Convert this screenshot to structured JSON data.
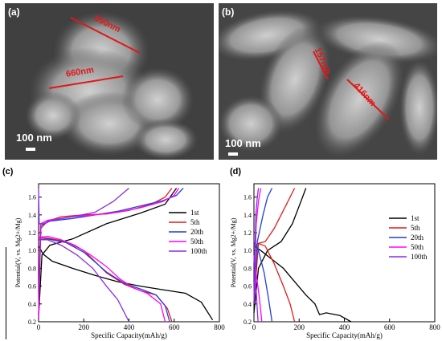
{
  "sem_images": [
    {
      "label": "(a)",
      "scale_label": "100 nm",
      "measurements": [
        "650nm",
        "660nm"
      ]
    },
    {
      "label": "(b)",
      "scale_label": "100 nm",
      "measurements": [
        "157nm",
        "416nm"
      ]
    }
  ],
  "chart_data": [
    {
      "label": "(c)",
      "type": "line",
      "xlabel": "Specific Capacity(mAh/g)",
      "ylabel": "Potential(V, vs. Mg2+/Mg)",
      "xlim": [
        0,
        800
      ],
      "ylim": [
        0.2,
        1.75
      ],
      "xticks": [
        "0",
        "200",
        "400",
        "600",
        "800"
      ],
      "yticks": [
        "0.2",
        "0.4",
        "0.6",
        "0.8",
        "1.0",
        "1.2",
        "1.4",
        "1.6"
      ],
      "legend_position": "right",
      "series": [
        {
          "name": "1st",
          "color": "#000000",
          "discharge": [
            [
              0,
              1.05
            ],
            [
              20,
              0.96
            ],
            [
              60,
              0.88
            ],
            [
              150,
              0.8
            ],
            [
              250,
              0.72
            ],
            [
              350,
              0.65
            ],
            [
              450,
              0.6
            ],
            [
              550,
              0.56
            ],
            [
              650,
              0.52
            ],
            [
              720,
              0.42
            ],
            [
              770,
              0.22
            ]
          ],
          "charge": [
            [
              0,
              0.25
            ],
            [
              15,
              0.95
            ],
            [
              50,
              1.06
            ],
            [
              150,
              1.13
            ],
            [
              300,
              1.3
            ],
            [
              450,
              1.42
            ],
            [
              560,
              1.52
            ],
            [
              610,
              1.7
            ]
          ]
        },
        {
          "name": "5th",
          "color": "#e41a1c",
          "discharge": [
            [
              0,
              1.14
            ],
            [
              40,
              1.14
            ],
            [
              120,
              1.1
            ],
            [
              200,
              1.0
            ],
            [
              300,
              0.75
            ],
            [
              380,
              0.62
            ],
            [
              450,
              0.55
            ],
            [
              520,
              0.5
            ],
            [
              570,
              0.35
            ],
            [
              590,
              0.2
            ]
          ],
          "charge": [
            [
              0,
              0.28
            ],
            [
              10,
              1.25
            ],
            [
              40,
              1.33
            ],
            [
              100,
              1.38
            ],
            [
              200,
              1.4
            ],
            [
              300,
              1.41
            ],
            [
              400,
              1.45
            ],
            [
              500,
              1.52
            ],
            [
              560,
              1.6
            ],
            [
              590,
              1.7
            ]
          ]
        },
        {
          "name": "20th",
          "color": "#1f3fd8",
          "discharge": [
            [
              0,
              1.12
            ],
            [
              40,
              1.13
            ],
            [
              120,
              1.09
            ],
            [
              200,
              0.98
            ],
            [
              300,
              0.76
            ],
            [
              380,
              0.63
            ],
            [
              460,
              0.56
            ],
            [
              520,
              0.5
            ],
            [
              560,
              0.38
            ],
            [
              580,
              0.2
            ]
          ],
          "charge": [
            [
              0,
              0.28
            ],
            [
              10,
              1.28
            ],
            [
              50,
              1.33
            ],
            [
              150,
              1.36
            ],
            [
              250,
              1.4
            ],
            [
              350,
              1.44
            ],
            [
              450,
              1.5
            ],
            [
              550,
              1.56
            ],
            [
              610,
              1.62
            ],
            [
              640,
              1.7
            ]
          ]
        },
        {
          "name": "50th",
          "color": "#ff00ff",
          "discharge": [
            [
              0,
              1.15
            ],
            [
              40,
              1.16
            ],
            [
              100,
              1.12
            ],
            [
              160,
              1.06
            ],
            [
              230,
              0.95
            ],
            [
              300,
              0.82
            ],
            [
              360,
              0.68
            ],
            [
              420,
              0.58
            ],
            [
              480,
              0.52
            ],
            [
              540,
              0.4
            ],
            [
              560,
              0.2
            ]
          ],
          "charge": [
            [
              0,
              0.25
            ],
            [
              8,
              1.3
            ],
            [
              40,
              1.34
            ],
            [
              150,
              1.38
            ],
            [
              250,
              1.4
            ],
            [
              350,
              1.43
            ],
            [
              450,
              1.48
            ],
            [
              550,
              1.55
            ],
            [
              600,
              1.62
            ],
            [
              620,
              1.7
            ]
          ]
        },
        {
          "name": "100th",
          "color": "#8a2be2",
          "discharge": [
            [
              0,
              1.12
            ],
            [
              40,
              1.12
            ],
            [
              100,
              1.06
            ],
            [
              170,
              0.95
            ],
            [
              240,
              0.8
            ],
            [
              300,
              0.6
            ],
            [
              350,
              0.45
            ],
            [
              400,
              0.2
            ]
          ],
          "charge": [
            [
              0,
              1.7
            ],
            [
              3,
              1.3
            ],
            [
              20,
              1.3
            ],
            [
              60,
              1.34
            ],
            [
              150,
              1.38
            ],
            [
              250,
              1.43
            ],
            [
              330,
              1.55
            ],
            [
              400,
              1.7
            ]
          ]
        }
      ]
    },
    {
      "label": "(d)",
      "type": "line",
      "xlabel": "Specific Capacity(mAh/g)",
      "ylabel": "Potential(V, vs. Mg2+/Mg)",
      "xlim": [
        0,
        800
      ],
      "ylim": [
        0.2,
        1.75
      ],
      "xticks": [
        "0",
        "200",
        "400",
        "600",
        "800"
      ],
      "yticks": [
        "0.2",
        "0.4",
        "0.6",
        "0.8",
        "1.0",
        "1.2",
        "1.4",
        "1.6"
      ],
      "legend_position": "right",
      "series": [
        {
          "name": "1st",
          "color": "#000000",
          "discharge": [
            [
              0,
              1.05
            ],
            [
              30,
              1.0
            ],
            [
              80,
              0.9
            ],
            [
              130,
              0.8
            ],
            [
              180,
              0.65
            ],
            [
              230,
              0.5
            ],
            [
              270,
              0.4
            ],
            [
              290,
              0.28
            ],
            [
              320,
              0.3
            ],
            [
              380,
              0.27
            ],
            [
              430,
              0.2
            ]
          ],
          "charge": [
            [
              0,
              0.3
            ],
            [
              20,
              0.8
            ],
            [
              60,
              1.0
            ],
            [
              120,
              1.1
            ],
            [
              170,
              1.3
            ],
            [
              200,
              1.5
            ],
            [
              230,
              1.7
            ]
          ]
        },
        {
          "name": "5th",
          "color": "#e41a1c",
          "discharge": [
            [
              0,
              1.05
            ],
            [
              20,
              1.08
            ],
            [
              50,
              1.05
            ],
            [
              90,
              0.85
            ],
            [
              130,
              0.6
            ],
            [
              160,
              0.4
            ],
            [
              180,
              0.2
            ]
          ],
          "charge": [
            [
              0,
              0.4
            ],
            [
              20,
              1.08
            ],
            [
              50,
              1.1
            ],
            [
              90,
              1.25
            ],
            [
              130,
              1.45
            ],
            [
              180,
              1.7
            ]
          ]
        },
        {
          "name": "20th",
          "color": "#1f3fd8",
          "discharge": [
            [
              0,
              1.1
            ],
            [
              20,
              1.0
            ],
            [
              45,
              0.75
            ],
            [
              65,
              0.45
            ],
            [
              80,
              0.2
            ]
          ],
          "charge": [
            [
              0,
              0.4
            ],
            [
              15,
              1.1
            ],
            [
              40,
              1.4
            ],
            [
              60,
              1.6
            ],
            [
              80,
              1.7
            ]
          ]
        },
        {
          "name": "50th",
          "color": "#ff00ff",
          "discharge": [
            [
              0,
              0.9
            ],
            [
              12,
              0.7
            ],
            [
              25,
              0.45
            ],
            [
              35,
              0.2
            ]
          ],
          "charge": [
            [
              0,
              0.4
            ],
            [
              10,
              1.3
            ],
            [
              20,
              1.55
            ],
            [
              30,
              1.7
            ]
          ]
        },
        {
          "name": "100th",
          "color": "#8a2be2",
          "discharge": [
            [
              0,
              0.95
            ],
            [
              6,
              0.7
            ],
            [
              12,
              0.45
            ],
            [
              18,
              0.2
            ]
          ],
          "charge": [
            [
              0,
              0.4
            ],
            [
              8,
              1.4
            ],
            [
              15,
              1.6
            ],
            [
              20,
              1.7
            ]
          ]
        }
      ]
    }
  ]
}
